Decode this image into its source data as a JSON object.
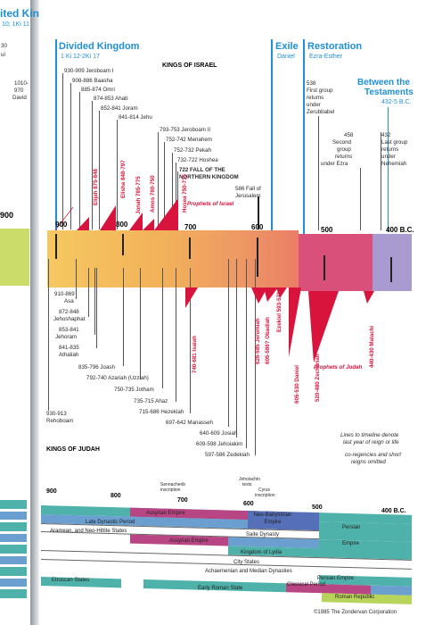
{
  "left_page": {
    "title": "ited Kings",
    "ref": "10; 1Ki 11",
    "frags": [
      "30",
      "ul",
      "1010-",
      "970",
      "David"
    ],
    "scale_label": "900"
  },
  "headers": {
    "divided": {
      "title": "Divided Kingdom",
      "ref": "1 Ki 12-2Ki 17"
    },
    "exile": {
      "title": "Exile",
      "ref": "Daniel"
    },
    "restoration": {
      "title": "Restoration",
      "ref": "Ezra-Esther"
    },
    "between": {
      "title1": "Between the",
      "title2": "Testaments",
      "ref": "432-5 B.C."
    }
  },
  "israel": {
    "title": "KINGS OF ISRAEL",
    "kings": [
      "930-909 Jeroboam I",
      "908-886 Baasha",
      "885-874 Omri",
      "874-853 Ahab",
      "852-841 Joram",
      "841-814 Jehu",
      "793-753 Jeroboam II",
      "752-742 Menahem",
      "752-732 Pekah",
      "732-722 Hoshea",
      "722 FALL OF THE",
      "NORTHERN KINGDOM"
    ],
    "fall_jerusalem": [
      "586 Fall of",
      "Jerusalem"
    ],
    "prophets_label": "Prophets of Israel"
  },
  "prophets_israel": [
    "Elijah 875-848",
    "Elisha 848-797",
    "Jonah 785-775",
    "Amos 760-750",
    "Hosea 750-715"
  ],
  "restoration_events": {
    "first": [
      "538",
      "First group",
      "returns",
      "under",
      "Zerubbabel"
    ],
    "second": [
      "458",
      "Second",
      "group",
      "returns",
      "under Ezra"
    ],
    "last": [
      "432",
      "Last group",
      "returns",
      "under",
      "Nehemiah"
    ]
  },
  "scale": {
    "labels": [
      "900",
      "800",
      "700",
      "600",
      "500",
      "400 B.C."
    ]
  },
  "judah": {
    "title": "KINGS OF JUDAH",
    "kings": [
      "910-869",
      "Asa",
      "872-848",
      "Jehoshaphat",
      "853-841",
      "Jehoram",
      "841-835",
      "Athaliah",
      "835-796 Joash",
      "792-740 Azariah (Uzziah)",
      "750-735 Jotham",
      "735-715 Ahaz",
      "715-686 Hezekiah",
      "697-642 Manasseh",
      "640-609 Josiah",
      "609-598 Jehoiakim",
      "597-586 Zedekiah"
    ],
    "first_king": [
      "930-913",
      "Rehoboam"
    ],
    "prophets_label": "Prophets of Judah"
  },
  "prophets_judah": [
    "740-681 Isaiah",
    "626-585 Jeremiah",
    "605-586? Obadiah",
    "Ezekiel 593-571",
    "605-530 Daniel",
    "520-480 Zechariah",
    "440-430 Malachi"
  ],
  "note": {
    "lines1": [
      "Lines to timeline denote",
      "last year of reign or life"
    ],
    "lines2": [
      "co-regencies and short",
      "reigns omitted"
    ]
  },
  "world": {
    "scale": [
      "900",
      "800",
      "700",
      "600",
      "500",
      "400 B.C."
    ],
    "inscriptions": [
      [
        "Sennacherib",
        "inscription"
      ],
      [
        "Jehoiachin",
        "texts"
      ],
      [
        "Cyrus",
        "inscription"
      ]
    ],
    "bands": [
      "Assyrian Empire",
      "Neo-Babylonian Empire",
      "Late Dynastic Period",
      "Persian",
      "Aramean, and Neo-Hittite States",
      "Saite Dynasty",
      "Assyrian Empire",
      "Empire",
      "Kingdom of Lydia",
      "City States",
      "Achaemenian and Median Dynasties",
      "Persian Empire",
      "Etruscan States",
      "Early Roman State",
      "Classical Period",
      "Roman Republic"
    ],
    "copyright": "©1985 The Zondervan Corporation"
  },
  "colors": {
    "blue": "#1f8fd6",
    "red": "#d8143c",
    "orange": "#f2b259",
    "pink": "#d9507a",
    "lavender": "#a99bd0",
    "green": "#b9d45a",
    "teal": "#4fb2aa",
    "magenta": "#b94684"
  }
}
